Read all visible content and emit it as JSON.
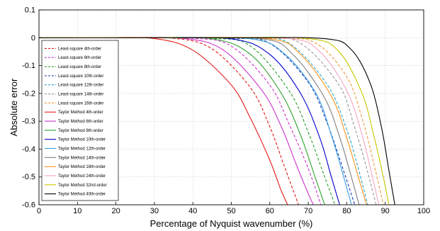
{
  "chart_data": {
    "type": "line",
    "title": "",
    "xlabel": "Percentage of Nyquist wavenumber (%)",
    "ylabel": "Absolute error",
    "xlim": [
      0,
      100
    ],
    "ylim": [
      -0.6,
      0.1
    ],
    "xticks": [
      0,
      10,
      20,
      30,
      40,
      50,
      60,
      70,
      80,
      90,
      100
    ],
    "yticks": [
      0.1,
      0,
      -0.1,
      -0.2,
      -0.3,
      -0.4,
      -0.5,
      -0.6
    ],
    "grid": true,
    "legend_position": "top-left",
    "series": [
      {
        "name": "Least-square 4th-order",
        "color": "#e41a1c",
        "dash": "dashed",
        "x": [
          0,
          20,
          35,
          45,
          55,
          60,
          64,
          68
        ],
        "y": [
          0,
          0,
          -0.002,
          -0.04,
          -0.18,
          -0.32,
          -0.47,
          -0.62
        ]
      },
      {
        "name": "Least-square 6th-order",
        "color": "#cc33cc",
        "dash": "dashed",
        "x": [
          0,
          22,
          40,
          50,
          60,
          65,
          70,
          74
        ],
        "y": [
          0,
          0,
          -0.002,
          -0.03,
          -0.17,
          -0.31,
          -0.47,
          -0.63
        ]
      },
      {
        "name": "Least-square 8th-order",
        "color": "#2ca02c",
        "dash": "dashed",
        "x": [
          0,
          25,
          45,
          55,
          65,
          70,
          74,
          78
        ],
        "y": [
          0,
          0,
          -0.002,
          -0.03,
          -0.19,
          -0.34,
          -0.49,
          -0.64
        ]
      },
      {
        "name": "Least-square 10th-order",
        "color": "#1f3fb4",
        "dash": "dashed",
        "x": [
          0,
          28,
          50,
          60,
          70,
          75,
          79,
          83
        ],
        "y": [
          0,
          0,
          -0.002,
          -0.02,
          -0.16,
          -0.31,
          -0.47,
          -0.64
        ]
      },
      {
        "name": "Least-square 12th-order",
        "color": "#2aa6c6",
        "dash": "dashed",
        "x": [
          0,
          30,
          55,
          65,
          75,
          80,
          83,
          86
        ],
        "y": [
          0,
          0,
          -0.002,
          -0.02,
          -0.17,
          -0.33,
          -0.47,
          -0.63
        ]
      },
      {
        "name": "Least-square 14th-order",
        "color": "#999999",
        "dash": "dashed",
        "x": [
          0,
          32,
          58,
          68,
          78,
          82,
          85,
          88
        ],
        "y": [
          0,
          0,
          -0.002,
          -0.02,
          -0.17,
          -0.32,
          -0.46,
          -0.62
        ]
      },
      {
        "name": "Least-square 16th-order",
        "color": "#f29a3a",
        "dash": "dashed",
        "x": [
          0,
          35,
          62,
          72,
          80,
          84,
          87,
          90
        ],
        "y": [
          0,
          0,
          -0.002,
          -0.02,
          -0.14,
          -0.29,
          -0.45,
          -0.63
        ]
      },
      {
        "name": "Taylor Method 4th-order",
        "color": "#e41a1c",
        "dash": "solid",
        "x": [
          0,
          15,
          30,
          40,
          50,
          55,
          60,
          63,
          66
        ],
        "y": [
          0,
          0,
          -0.003,
          -0.045,
          -0.17,
          -0.29,
          -0.44,
          -0.55,
          -0.64
        ]
      },
      {
        "name": "Taylor Method 6th-order",
        "color": "#cc33cc",
        "dash": "solid",
        "x": [
          0,
          20,
          38,
          48,
          58,
          63,
          67,
          70,
          73
        ],
        "y": [
          0,
          0,
          -0.003,
          -0.045,
          -0.19,
          -0.32,
          -0.46,
          -0.56,
          -0.65
        ]
      },
      {
        "name": "Taylor Method 8th-order",
        "color": "#2ca02c",
        "dash": "solid",
        "x": [
          0,
          25,
          45,
          55,
          63,
          68,
          72,
          75
        ],
        "y": [
          0,
          0,
          -0.004,
          -0.06,
          -0.2,
          -0.35,
          -0.51,
          -0.63
        ]
      },
      {
        "name": "Taylor Method 10th-order",
        "color": "#0000cc",
        "dash": "solid",
        "x": [
          0,
          28,
          50,
          60,
          68,
          73,
          76,
          79
        ],
        "y": [
          0,
          0,
          -0.004,
          -0.06,
          -0.2,
          -0.36,
          -0.5,
          -0.64
        ]
      },
      {
        "name": "Taylor Method 12th-order",
        "color": "#3aa0e0",
        "dash": "solid",
        "x": [
          0,
          30,
          55,
          64,
          72,
          76,
          79,
          82
        ],
        "y": [
          0,
          0,
          -0.004,
          -0.06,
          -0.2,
          -0.35,
          -0.49,
          -0.64
        ]
      },
      {
        "name": "Taylor Method 14th-order",
        "color": "#808080",
        "dash": "solid",
        "x": [
          0,
          32,
          58,
          66,
          74,
          78,
          81,
          84
        ],
        "y": [
          0,
          0,
          -0.004,
          -0.06,
          -0.21,
          -0.35,
          -0.49,
          -0.64
        ]
      },
      {
        "name": "Taylor Method 16th-order",
        "color": "#f7941d",
        "dash": "solid",
        "x": [
          0,
          35,
          60,
          68,
          76,
          80,
          83,
          86
        ],
        "y": [
          0,
          0,
          -0.004,
          -0.06,
          -0.21,
          -0.36,
          -0.5,
          -0.64
        ]
      },
      {
        "name": "Taylor Method 24th-order",
        "color": "#f4a6c6",
        "dash": "solid",
        "x": [
          0,
          40,
          65,
          73,
          80,
          84,
          87,
          89
        ],
        "y": [
          0,
          0,
          -0.003,
          -0.05,
          -0.19,
          -0.35,
          -0.52,
          -0.64
        ]
      },
      {
        "name": "Taylor Method 32nd-order",
        "color": "#c8c800",
        "dash": "solid",
        "x": [
          0,
          45,
          70,
          78,
          84,
          87,
          89.5,
          91.5
        ],
        "y": [
          0,
          0,
          -0.003,
          -0.05,
          -0.2,
          -0.35,
          -0.5,
          -0.64
        ]
      },
      {
        "name": "Taylor Method 40th-order",
        "color": "#000000",
        "dash": "solid",
        "x": [
          0,
          50,
          74,
          81,
          86,
          89,
          91,
          93
        ],
        "y": [
          0,
          0,
          -0.003,
          -0.04,
          -0.16,
          -0.32,
          -0.48,
          -0.64
        ]
      }
    ]
  }
}
